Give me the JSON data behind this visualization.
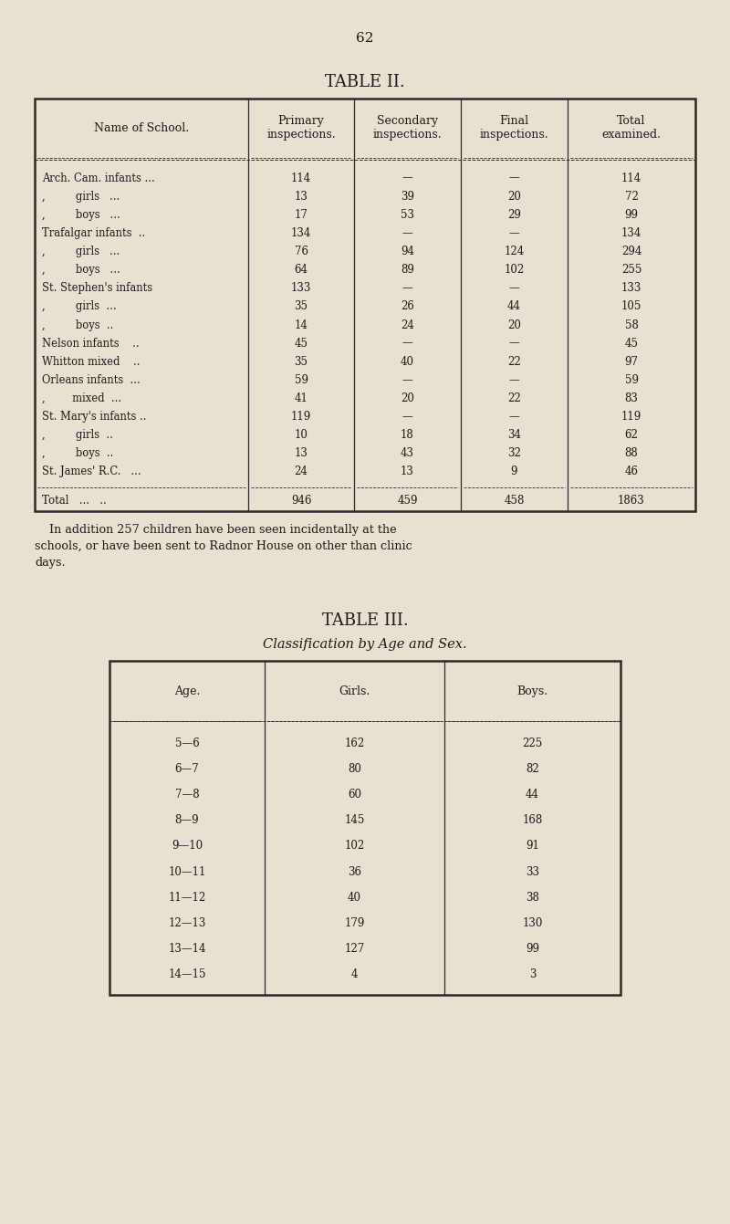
{
  "page_number": "62",
  "bg_color": "#e8e0d0",
  "table2_title": "TABLE II.",
  "table2_col_headers": [
    "Name of School.",
    "Primary\ninspections.",
    "Secondary\ninspections.",
    "Final\ninspections.",
    "Total\nexamined."
  ],
  "table2_rows": [
    [
      "Arch. Cam. infants ...",
      "114",
      "—",
      "—",
      "114"
    ],
    [
      ",       girls   ...",
      "13",
      "39",
      "20",
      "72"
    ],
    [
      ",       boys   ...",
      "17",
      "53",
      "29",
      "99"
    ],
    [
      "Trafalgar infants  ..",
      "134",
      "—",
      "—",
      "134"
    ],
    [
      ",       girls   ...",
      "76",
      "94",
      "124",
      "294"
    ],
    [
      ",       boys   ...",
      "64",
      "89",
      "102",
      "255"
    ],
    [
      "St. Stephen's infants",
      "133",
      "—",
      "—",
      "133"
    ],
    [
      ",       girls  ...",
      "35",
      "26",
      "44",
      "105"
    ],
    [
      ",       boys  ..",
      "14",
      "24",
      "20",
      "58"
    ],
    [
      "Nelson infants    ..",
      "45",
      "—",
      "—",
      "45"
    ],
    [
      "Whitton mixed    ..",
      "35",
      "40",
      "22",
      "97"
    ],
    [
      "Orleans infants  ...",
      "59",
      "—",
      "—",
      "59"
    ],
    [
      ",      mixed  ...",
      "41",
      "20",
      "22",
      "83"
    ],
    [
      "St. Mary's infants ..",
      "119",
      "—",
      "—",
      "119"
    ],
    [
      ",       girls  ..",
      "10",
      "18",
      "34",
      "62"
    ],
    [
      ",       boys  ..",
      "13",
      "43",
      "32",
      "88"
    ],
    [
      "St. James' R.C.   ...",
      "24",
      "13",
      "9",
      "46"
    ]
  ],
  "table2_total_label": "Total   ...   ..",
  "table2_total": [
    "946",
    "459",
    "458",
    "1863"
  ],
  "addition_line1": "    In addition 257 children have been seen incidentally at the",
  "addition_line2": "schools, or have been sent to Radnor House on other than clinic",
  "addition_line3": "days.",
  "table3_title": "TABLE III.",
  "table3_subtitle": "Classification by Age and Sex.",
  "table3_col_headers": [
    "Age.",
    "Girls.",
    "Boys."
  ],
  "table3_rows": [
    [
      "5—6",
      "162",
      "225"
    ],
    [
      "6—7",
      "80",
      "82"
    ],
    [
      "7—8",
      "60",
      "44"
    ],
    [
      "8—9",
      "145",
      "168"
    ],
    [
      "9—10",
      "102",
      "91"
    ],
    [
      "10—11",
      "36",
      "33"
    ],
    [
      "11—12",
      "40",
      "38"
    ],
    [
      "12—13",
      "179",
      "130"
    ],
    [
      "13—14",
      "127",
      "99"
    ],
    [
      "14—15",
      "4",
      "3"
    ]
  ],
  "font_color": "#1a1a1a",
  "line_color": "#2a2a2a"
}
